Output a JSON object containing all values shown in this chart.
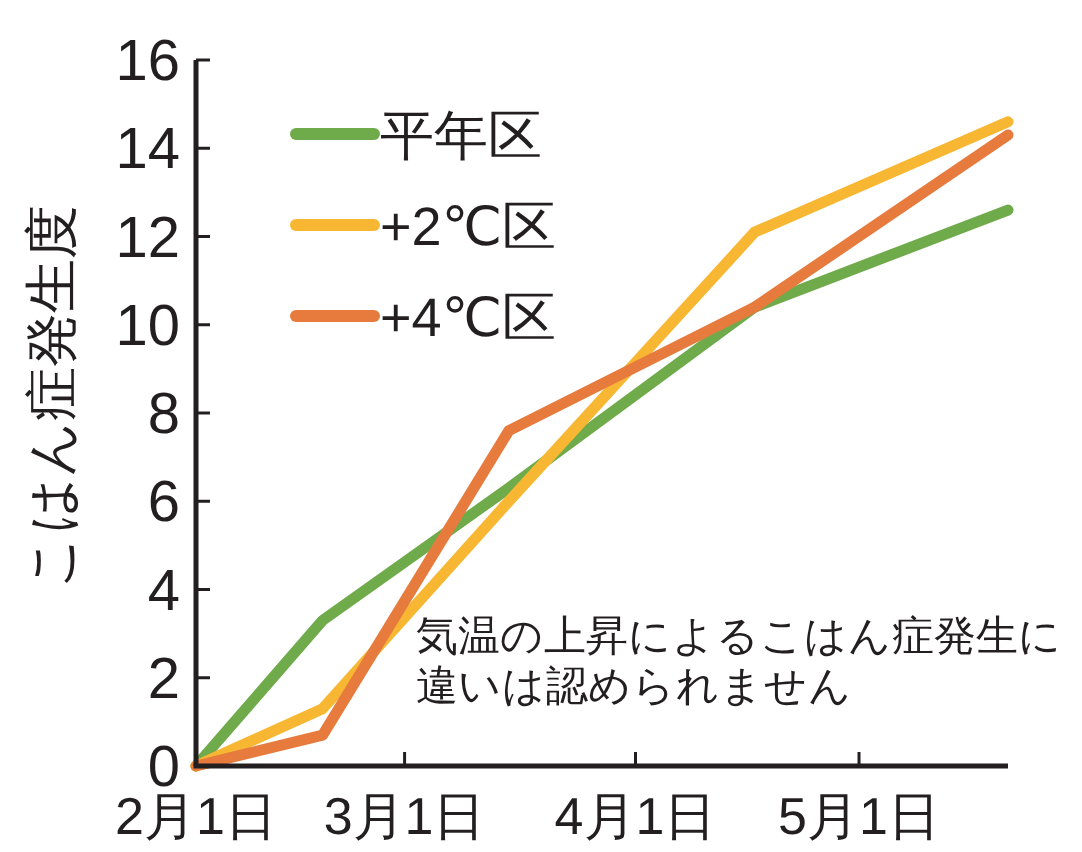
{
  "chart_data": {
    "type": "line",
    "ylabel": "こはん症発生度",
    "x": [
      "--02-01",
      "--02-18",
      "--03-15",
      "--04-17",
      "--05-21"
    ],
    "series": [
      {
        "name": "平年区",
        "color": "#6fab4b",
        "values": [
          0,
          3.3,
          6.3,
          10.4,
          12.6
        ]
      },
      {
        "name": "+2℃区",
        "color": "#f8b733",
        "values": [
          0,
          1.3,
          6.0,
          12.1,
          14.6
        ]
      },
      {
        "name": "+4℃区",
        "color": "#e77b3d",
        "values": [
          0,
          0.7,
          7.6,
          10.4,
          14.3
        ]
      }
    ],
    "xlim": [
      "--02-01",
      "--05-21"
    ],
    "xticks": [
      {
        "value": "--02-01",
        "label": "2月1日"
      },
      {
        "value": "--03-01",
        "label": "3月1日"
      },
      {
        "value": "--04-01",
        "label": "4月1日"
      },
      {
        "value": "--05-01",
        "label": "5月1日"
      }
    ],
    "ylim": [
      0,
      16
    ],
    "yticks": [
      0,
      2,
      4,
      6,
      8,
      10,
      12,
      14,
      16
    ],
    "legend": "top left",
    "annotations": [
      "気温の上昇によるこはん症発生に違いは認められません"
    ]
  }
}
